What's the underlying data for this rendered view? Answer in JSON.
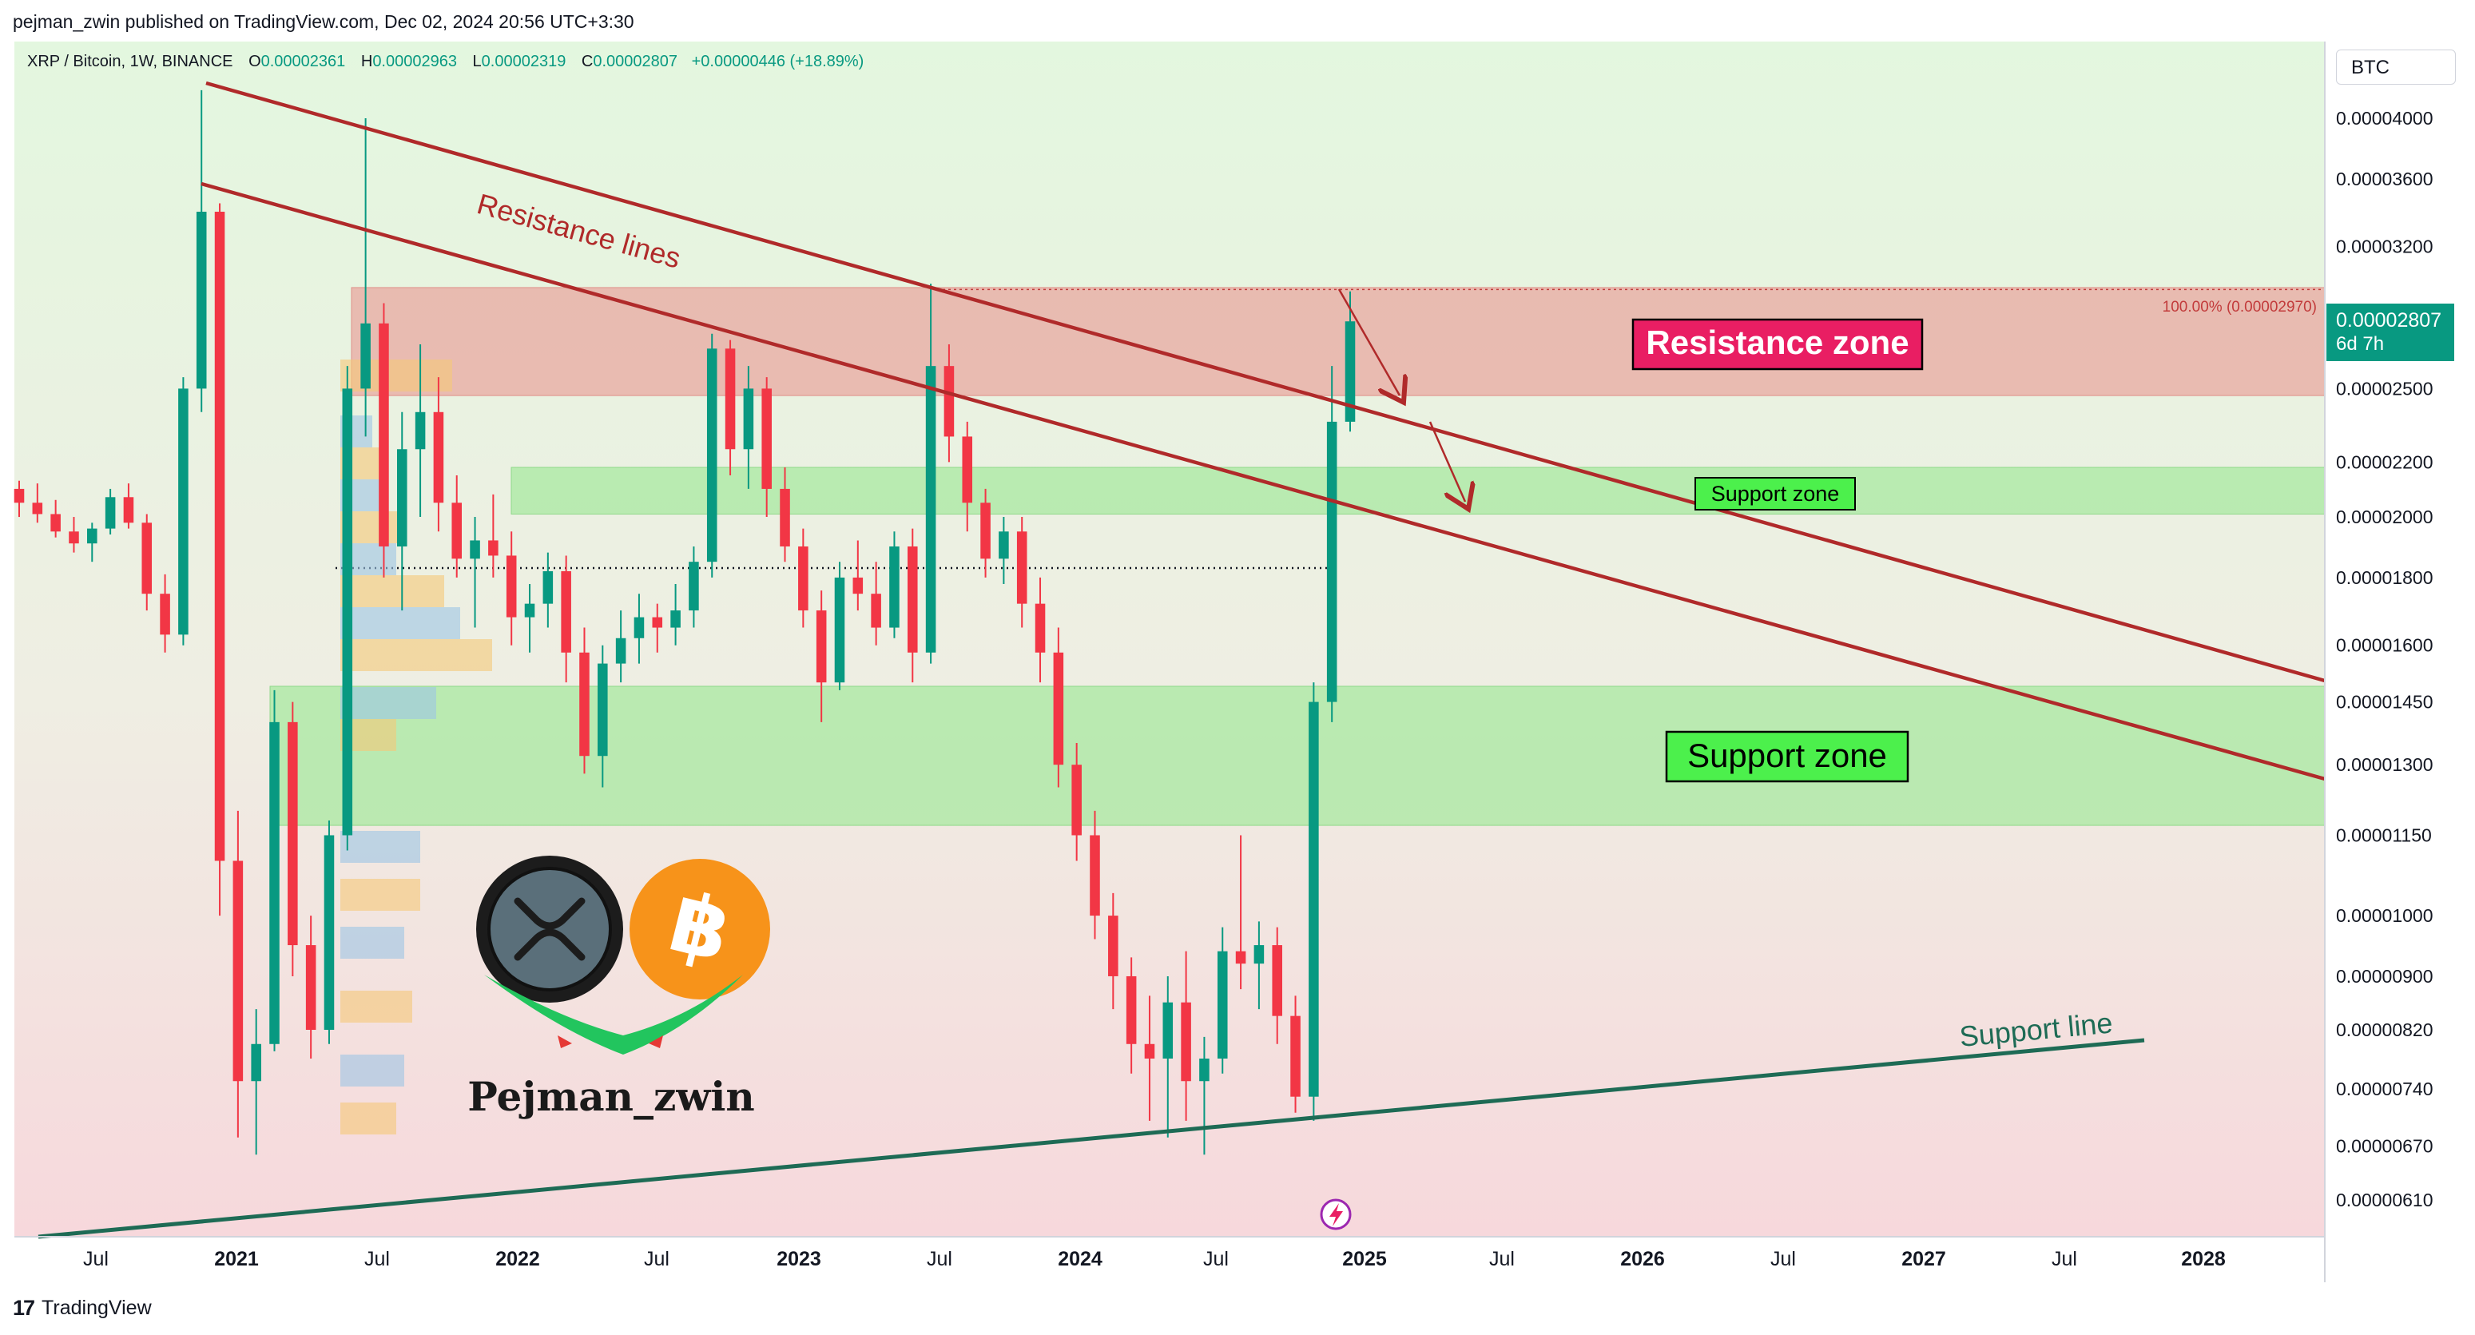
{
  "header": {
    "published_line": "pejman_zwin published on TradingView.com, Dec 02, 2024 20:56 UTC+3:30"
  },
  "symbol": {
    "name": "XRP / Bitcoin, 1W, BINANCE",
    "open_label": "O",
    "open": "0.00002361",
    "high_label": "H",
    "high": "0.00002963",
    "low_label": "L",
    "low": "0.00002319",
    "close_label": "C",
    "close": "0.00002807",
    "change": "+0.00000446 (+18.89%)"
  },
  "currency": "BTC",
  "price_tag": {
    "price": "0.00002807",
    "countdown": "6d 7h"
  },
  "fib_label": "100.00% (0.00002970)",
  "annotations": {
    "resistance_lines": "Resistance lines",
    "resistance_zone": "Resistance zone",
    "support_zone_small": "Support zone",
    "support_zone_big": "Support zone",
    "support_line": "Support line",
    "watermark_name": "Pejman_zwin"
  },
  "footer": {
    "brand": "TradingView",
    "logo": "17"
  },
  "colors": {
    "up": "#089981",
    "down": "#f23645",
    "resistance_zone": "#e8a8a0",
    "support_zone": "#a8e8a0",
    "trendline": "#b02a2a",
    "support_line": "#1e6b55",
    "label_red": "#e91e63",
    "label_green": "#4cf04c"
  },
  "chart_data": {
    "type": "candlestick",
    "title": "XRP / Bitcoin, 1W, BINANCE",
    "y_scale": "log",
    "y_ticks": [
      "0.00004000",
      "0.00003600",
      "0.00003200",
      "0.00002500",
      "0.00002200",
      "0.00002000",
      "0.00001800",
      "0.00001600",
      "0.00001450",
      "0.00001300",
      "0.00001150",
      "0.00001000",
      "0.00000900",
      "0.00000820",
      "0.00000740",
      "0.00000670",
      "0.00000610"
    ],
    "x_ticks": [
      "Jul",
      "2021",
      "Jul",
      "2022",
      "Jul",
      "2023",
      "Jul",
      "2024",
      "Jul",
      "2025",
      "Jul",
      "2026",
      "Jul",
      "2027",
      "Jul",
      "2028"
    ],
    "ylim": [
      5.8e-06,
      4.4e-05
    ],
    "last_close": 2.807e-05,
    "fib_level": 2.97e-05,
    "zones": [
      {
        "name": "Resistance zone",
        "from": 2.47e-05,
        "to": 2.98e-05
      },
      {
        "name": "Support zone",
        "from": 2.01e-05,
        "to": 2.18e-05
      },
      {
        "name": "Support zone",
        "from": 1.17e-05,
        "to": 1.49e-05
      }
    ],
    "dotted_level": 1.83e-05,
    "candles": [
      [
        2.1e-05,
        2.13e-05,
        2e-05,
        2.05e-05
      ],
      [
        2.05e-05,
        2.12e-05,
        1.98e-05,
        2.01e-05
      ],
      [
        2.01e-05,
        2.06e-05,
        1.93e-05,
        1.95e-05
      ],
      [
        1.95e-05,
        2e-05,
        1.88e-05,
        1.91e-05
      ],
      [
        1.91e-05,
        1.98e-05,
        1.85e-05,
        1.96e-05
      ],
      [
        1.96e-05,
        2.1e-05,
        1.94e-05,
        2.07e-05
      ],
      [
        2.07e-05,
        2.12e-05,
        1.96e-05,
        1.98e-05
      ],
      [
        1.98e-05,
        2.01e-05,
        1.7e-05,
        1.75e-05
      ],
      [
        1.75e-05,
        1.81e-05,
        1.58e-05,
        1.63e-05
      ],
      [
        1.63e-05,
        2.55e-05,
        1.6e-05,
        2.5e-05
      ],
      [
        2.5e-05,
        4.2e-05,
        2.4e-05,
        3.4e-05
      ],
      [
        3.4e-05,
        3.45e-05,
        1e-05,
        1.1e-05
      ],
      [
        1.1e-05,
        1.2e-05,
        6.8e-06,
        7.5e-06
      ],
      [
        7.5e-06,
        8.5e-06,
        6.6e-06,
        8e-06
      ],
      [
        8e-06,
        1.48e-05,
        7.9e-06,
        1.4e-05
      ],
      [
        1.4e-05,
        1.45e-05,
        9e-06,
        9.5e-06
      ],
      [
        9.5e-06,
        1e-05,
        7.8e-06,
        8.2e-06
      ],
      [
        8.2e-06,
        1.18e-05,
        8e-06,
        1.15e-05
      ],
      [
        1.15e-05,
        2.6e-05,
        1.12e-05,
        2.5e-05
      ],
      [
        2.5e-05,
        4e-05,
        2.3e-05,
        2.8e-05
      ],
      [
        2.8e-05,
        2.9e-05,
        1.8e-05,
        1.9e-05
      ],
      [
        1.9e-05,
        2.4e-05,
        1.7e-05,
        2.25e-05
      ],
      [
        2.25e-05,
        2.7e-05,
        2e-05,
        2.4e-05
      ],
      [
        2.4e-05,
        2.55e-05,
        1.95e-05,
        2.05e-05
      ],
      [
        2.05e-05,
        2.15e-05,
        1.8e-05,
        1.86e-05
      ],
      [
        1.86e-05,
        2e-05,
        1.65e-05,
        1.92e-05
      ],
      [
        1.92e-05,
        2.08e-05,
        1.8e-05,
        1.87e-05
      ],
      [
        1.87e-05,
        1.95e-05,
        1.6e-05,
        1.68e-05
      ],
      [
        1.68e-05,
        1.78e-05,
        1.58e-05,
        1.72e-05
      ],
      [
        1.72e-05,
        1.88e-05,
        1.65e-05,
        1.82e-05
      ],
      [
        1.82e-05,
        1.87e-05,
        1.5e-05,
        1.58e-05
      ],
      [
        1.58e-05,
        1.65e-05,
        1.28e-05,
        1.32e-05
      ],
      [
        1.32e-05,
        1.6e-05,
        1.25e-05,
        1.55e-05
      ],
      [
        1.55e-05,
        1.7e-05,
        1.5e-05,
        1.62e-05
      ],
      [
        1.62e-05,
        1.75e-05,
        1.55e-05,
        1.68e-05
      ],
      [
        1.68e-05,
        1.72e-05,
        1.58e-05,
        1.65e-05
      ],
      [
        1.65e-05,
        1.78e-05,
        1.6e-05,
        1.7e-05
      ],
      [
        1.7e-05,
        1.9e-05,
        1.65e-05,
        1.85e-05
      ],
      [
        1.85e-05,
        2.75e-05,
        1.8e-05,
        2.68e-05
      ],
      [
        2.68e-05,
        2.72e-05,
        2.15e-05,
        2.25e-05
      ],
      [
        2.25e-05,
        2.6e-05,
        2.1e-05,
        2.5e-05
      ],
      [
        2.5e-05,
        2.55e-05,
        2e-05,
        2.1e-05
      ],
      [
        2.1e-05,
        2.18e-05,
        1.85e-05,
        1.9e-05
      ],
      [
        1.9e-05,
        1.96e-05,
        1.65e-05,
        1.7e-05
      ],
      [
        1.7e-05,
        1.76e-05,
        1.4e-05,
        1.5e-05
      ],
      [
        1.5e-05,
        1.85e-05,
        1.48e-05,
        1.8e-05
      ],
      [
        1.8e-05,
        1.92e-05,
        1.7e-05,
        1.75e-05
      ],
      [
        1.75e-05,
        1.85e-05,
        1.6e-05,
        1.65e-05
      ],
      [
        1.65e-05,
        1.95e-05,
        1.62e-05,
        1.9e-05
      ],
      [
        1.9e-05,
        1.96e-05,
        1.5e-05,
        1.58e-05
      ],
      [
        1.58e-05,
        3e-05,
        1.55e-05,
        2.6e-05
      ],
      [
        2.6e-05,
        2.7e-05,
        2.2e-05,
        2.3e-05
      ],
      [
        2.3e-05,
        2.36e-05,
        1.95e-05,
        2.05e-05
      ],
      [
        2.05e-05,
        2.1e-05,
        1.8e-05,
        1.86e-05
      ],
      [
        1.86e-05,
        2e-05,
        1.78e-05,
        1.95e-05
      ],
      [
        1.95e-05,
        2e-05,
        1.65e-05,
        1.72e-05
      ],
      [
        1.72e-05,
        1.8e-05,
        1.5e-05,
        1.58e-05
      ],
      [
        1.58e-05,
        1.65e-05,
        1.25e-05,
        1.3e-05
      ],
      [
        1.3e-05,
        1.35e-05,
        1.1e-05,
        1.15e-05
      ],
      [
        1.15e-05,
        1.2e-05,
        9.6e-06,
        1e-05
      ],
      [
        1e-05,
        1.04e-05,
        8.5e-06,
        9e-06
      ],
      [
        9e-06,
        9.3e-06,
        7.6e-06,
        8e-06
      ],
      [
        8e-06,
        8.7e-06,
        7e-06,
        7.8e-06
      ],
      [
        7.8e-06,
        9e-06,
        6.8e-06,
        8.6e-06
      ],
      [
        8.6e-06,
        9.4e-06,
        7e-06,
        7.5e-06
      ],
      [
        7.5e-06,
        8.1e-06,
        6.6e-06,
        7.8e-06
      ],
      [
        7.8e-06,
        9.8e-06,
        7.6e-06,
        9.4e-06
      ],
      [
        9.4e-06,
        1.15e-05,
        8.8e-06,
        9.2e-06
      ],
      [
        9.2e-06,
        9.9e-06,
        8.5e-06,
        9.5e-06
      ],
      [
        9.5e-06,
        9.8e-06,
        8e-06,
        8.4e-06
      ],
      [
        8.4e-06,
        8.7e-06,
        7.1e-06,
        7.3e-06
      ],
      [
        7.3e-06,
        1.5e-05,
        7e-06,
        1.45e-05
      ],
      [
        1.45e-05,
        2.6e-05,
        1.4e-05,
        2.36e-05
      ],
      [
        2.36e-05,
        2.96e-05,
        2.32e-05,
        2.81e-05
      ]
    ]
  }
}
